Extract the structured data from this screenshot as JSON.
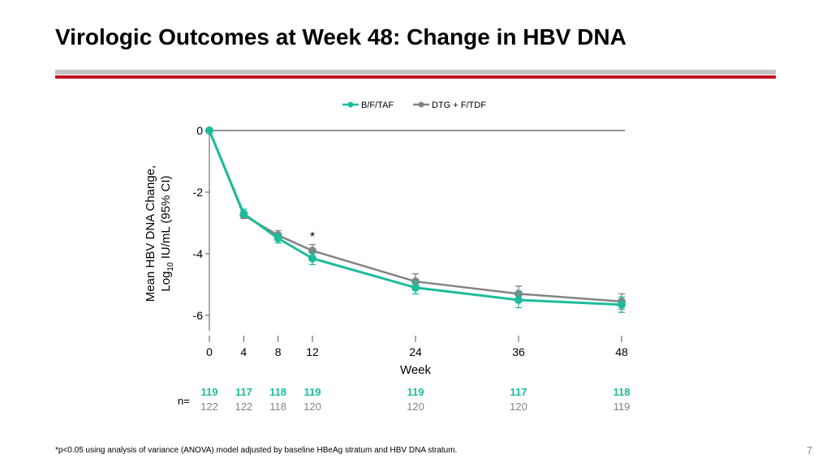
{
  "slide": {
    "title": "Virologic Outcomes at Week 48: Change in HBV DNA",
    "footnote": "*p<0.05 using analysis of variance (ANOVA) model adjusted by baseline HBeAg stratum and HBV DNA stratum.",
    "page_number": "7"
  },
  "colors": {
    "bftaf": "#1dbc9c",
    "dtg": "#838383",
    "title_rule_grey": "#c3c3c3",
    "title_rule_red": "#c1121f"
  },
  "chart_data": {
    "type": "line",
    "title": "",
    "xlabel": "Week",
    "ylabel_line1": "Mean HBV DNA Change,",
    "ylabel_line2_prefix": "Log",
    "ylabel_line2_sub": "10",
    "ylabel_line2_suffix": " IU/mL (95% CI)",
    "x": [
      0,
      4,
      8,
      12,
      24,
      36,
      48
    ],
    "x_tick_labels": [
      "0",
      "4",
      "8",
      "12",
      "24",
      "36",
      "48"
    ],
    "xlim": [
      0,
      48
    ],
    "ylim": [
      -6.5,
      0
    ],
    "y_ticks": [
      0,
      -2,
      -4,
      -6
    ],
    "y_tick_labels": [
      "0",
      "-2",
      "-4",
      "-6"
    ],
    "legend_position": "top-center",
    "series": [
      {
        "name": "B/F/TAF",
        "color": "#1dbc9c",
        "values": [
          0,
          -2.7,
          -3.5,
          -4.15,
          -5.1,
          -5.5,
          -5.65
        ],
        "ci_low": [
          0,
          -2.8,
          -3.65,
          -4.35,
          -5.3,
          -5.75,
          -5.9
        ],
        "ci_high": [
          0,
          -2.55,
          -3.35,
          -3.95,
          -4.9,
          -5.25,
          -5.4
        ]
      },
      {
        "name": "DTG + F/TDF",
        "color": "#838383",
        "values": [
          0,
          -2.75,
          -3.4,
          -3.9,
          -4.9,
          -5.3,
          -5.55
        ],
        "ci_low": [
          0,
          -2.85,
          -3.55,
          -4.1,
          -5.15,
          -5.55,
          -5.8
        ],
        "ci_high": [
          0,
          -2.65,
          -3.25,
          -3.7,
          -4.65,
          -5.05,
          -5.3
        ]
      }
    ],
    "annotations": [
      {
        "text": "*",
        "x": 12
      }
    ],
    "n_label": "n=",
    "n_counts": [
      {
        "name": "B/F/TAF",
        "color": "#1dbc9c",
        "values": [
          "119",
          "117",
          "118",
          "119",
          "119",
          "117",
          "118"
        ]
      },
      {
        "name": "DTG + F/TDF",
        "color": "#838383",
        "values": [
          "122",
          "122",
          "118",
          "120",
          "120",
          "120",
          "119"
        ]
      }
    ]
  }
}
